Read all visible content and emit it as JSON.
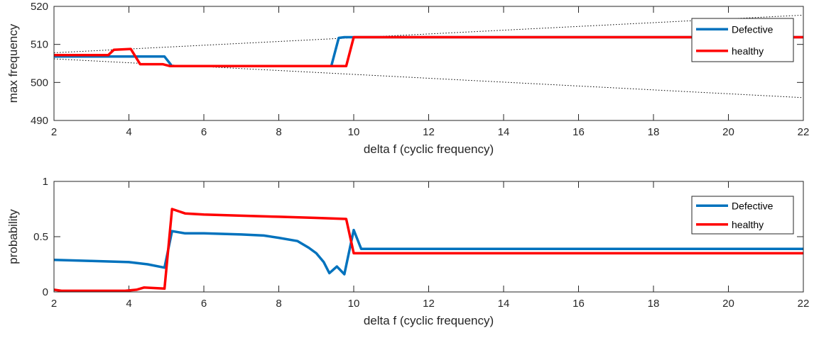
{
  "chart_data": [
    {
      "type": "line",
      "xlabel": "delta f (cyclic frequency)",
      "ylabel": "max frequency",
      "xlim": [
        2,
        22
      ],
      "ylim": [
        490,
        520
      ],
      "xticks": [
        2,
        4,
        6,
        8,
        10,
        12,
        14,
        16,
        18,
        20,
        22
      ],
      "yticks": [
        490,
        500,
        510,
        520
      ],
      "xtick_labels": [
        "2",
        "4",
        "6",
        "8",
        "10",
        "12",
        "14",
        "16",
        "18",
        "20",
        "22"
      ],
      "ytick_labels": [
        "490",
        "500",
        "510",
        "520"
      ],
      "legend": {
        "location": "right"
      },
      "series": [
        {
          "name": "Defective",
          "color": "#0072BD",
          "x": [
            2,
            4.95,
            5.15,
            9.4,
            9.6,
            9.75,
            22
          ],
          "y": [
            506.8,
            506.8,
            504.3,
            504.3,
            511.7,
            511.9,
            511.9
          ]
        },
        {
          "name": "healthy",
          "color": "#FF0000",
          "x": [
            2,
            3.45,
            3.6,
            4.05,
            4.3,
            4.9,
            5.1,
            9.8,
            10.0,
            22
          ],
          "y": [
            507.2,
            507.2,
            508.6,
            508.8,
            504.8,
            504.8,
            504.3,
            504.3,
            511.9,
            511.9
          ]
        }
      ],
      "reference_lines": [
        {
          "style": "dotted",
          "color": "#000000",
          "x": [
            2,
            22
          ],
          "y": [
            507.8,
            517.7
          ]
        },
        {
          "style": "dotted",
          "color": "#000000",
          "x": [
            2,
            22
          ],
          "y": [
            506.2,
            496.0
          ]
        }
      ]
    },
    {
      "type": "line",
      "xlabel": "delta f (cyclic frequency)",
      "ylabel": "probability",
      "xlim": [
        2,
        22
      ],
      "ylim": [
        0,
        1
      ],
      "xticks": [
        2,
        4,
        6,
        8,
        10,
        12,
        14,
        16,
        18,
        20,
        22
      ],
      "yticks": [
        0,
        0.5,
        1
      ],
      "xtick_labels": [
        "2",
        "4",
        "6",
        "8",
        "10",
        "12",
        "14",
        "16",
        "18",
        "20",
        "22"
      ],
      "ytick_labels": [
        "0",
        "0.5",
        "1"
      ],
      "legend": {
        "location": "top-right"
      },
      "series": [
        {
          "name": "Defective",
          "color": "#0072BD",
          "x": [
            2,
            3,
            4,
            4.5,
            4.95,
            5.15,
            5.5,
            6,
            7,
            7.6,
            8,
            8.5,
            8.8,
            9.0,
            9.2,
            9.35,
            9.55,
            9.75,
            9.9,
            10.0,
            10.2,
            22
          ],
          "y": [
            0.29,
            0.28,
            0.27,
            0.25,
            0.22,
            0.55,
            0.53,
            0.53,
            0.52,
            0.51,
            0.49,
            0.46,
            0.4,
            0.35,
            0.27,
            0.17,
            0.23,
            0.16,
            0.4,
            0.56,
            0.39,
            0.39
          ]
        },
        {
          "name": "healthy",
          "color": "#FF0000",
          "x": [
            2,
            2.2,
            3,
            3.9,
            4.2,
            4.4,
            4.95,
            5.15,
            5.5,
            6,
            7,
            8,
            9,
            9.8,
            10.0,
            22
          ],
          "y": [
            0.02,
            0.01,
            0.01,
            0.01,
            0.02,
            0.04,
            0.03,
            0.75,
            0.71,
            0.7,
            0.69,
            0.68,
            0.67,
            0.66,
            0.35,
            0.35
          ]
        }
      ]
    }
  ]
}
